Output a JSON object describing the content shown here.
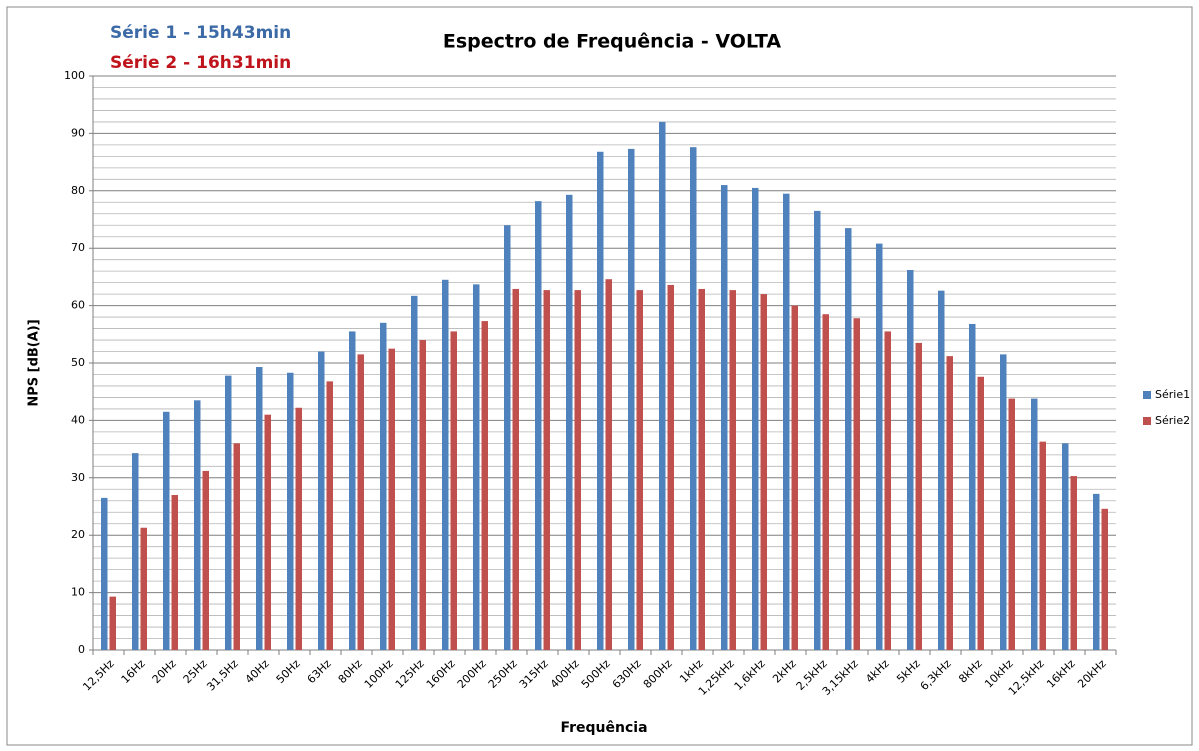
{
  "chart_data": {
    "type": "bar",
    "title": "Espectro de Frequência - VOLTA",
    "annotations": [
      {
        "text": "Série 1 - 15h43min",
        "color": "#3b6aa6"
      },
      {
        "text": "Série 2 - 16h31min",
        "color": "#c0141c"
      }
    ],
    "x_label": "Frequência",
    "y_label": "NPS [dB(A)]",
    "categories": [
      "12,5Hz",
      "16Hz",
      "20Hz",
      "25Hz",
      "31,5Hz",
      "40Hz",
      "50Hz",
      "63Hz",
      "80Hz",
      "100Hz",
      "125Hz",
      "160Hz",
      "200Hz",
      "250Hz",
      "315Hz",
      "400Hz",
      "500Hz",
      "630Hz",
      "800Hz",
      "1kHz",
      "1,25kHz",
      "1,6kHz",
      "2kHz",
      "2,5kHz",
      "3,15kHz",
      "4kHz",
      "5kHz",
      "6,3kHz",
      "8kHz",
      "10kHz",
      "12,5kHz",
      "16kHz",
      "20kHz"
    ],
    "series": [
      {
        "name": "Série1",
        "color": "#4f81bd",
        "values": [
          26.5,
          34.3,
          41.5,
          43.5,
          47.8,
          49.3,
          48.3,
          52,
          55.5,
          57,
          61.7,
          64.5,
          63.7,
          74,
          78.2,
          79.3,
          86.8,
          87.3,
          92,
          87.6,
          81,
          80.5,
          79.5,
          76.5,
          73.5,
          70.8,
          66.2,
          62.6,
          56.8,
          51.5,
          43.8,
          36,
          27.2
        ]
      },
      {
        "name": "Série2",
        "color": "#c0504d",
        "values": [
          9.3,
          21.3,
          27,
          31.2,
          36,
          41,
          42.2,
          46.8,
          51.5,
          52.5,
          54,
          55.5,
          57.3,
          62.9,
          62.7,
          62.7,
          64.6,
          62.7,
          63.6,
          62.9,
          62.7,
          62,
          60,
          58.5,
          57.8,
          55.5,
          53.5,
          51.2,
          47.6,
          43.8,
          36.3,
          30.3,
          24.6
        ]
      }
    ],
    "ylim": [
      0,
      100
    ],
    "yticks": [
      0,
      10,
      20,
      30,
      40,
      50,
      60,
      70,
      80,
      90,
      100
    ],
    "grid": true,
    "minor_grid": true,
    "legend": "right"
  }
}
